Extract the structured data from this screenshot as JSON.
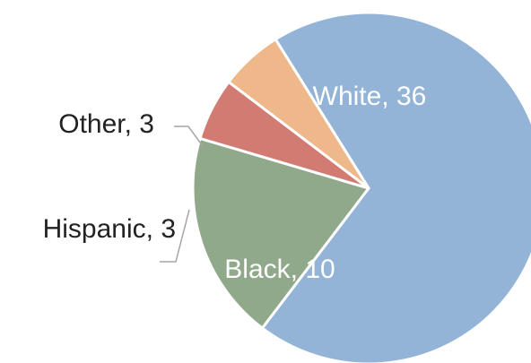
{
  "chart_data": {
    "type": "pie",
    "title": "",
    "categories": [
      "White",
      "Black",
      "Hispanic",
      "Other"
    ],
    "values": [
      36,
      10,
      3,
      3
    ],
    "data_labels": [
      "White, 36",
      "Black, 10",
      "Hispanic, 3",
      "Other, 3"
    ],
    "colors": [
      "#93b4d6",
      "#8fa98a",
      "#d27b72",
      "#efb88a"
    ],
    "label_colors": [
      "#ffffff",
      "#ffffff",
      "#222222",
      "#222222"
    ],
    "legend": "none",
    "start_angle_deg": 238,
    "direction": "clockwise"
  }
}
